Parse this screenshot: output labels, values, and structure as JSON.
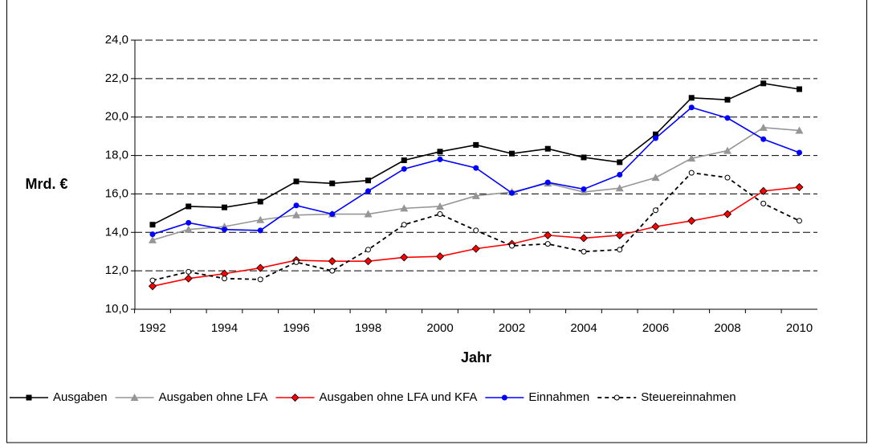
{
  "chart_data": {
    "type": "line",
    "categories": [
      "1992",
      null,
      "1994",
      null,
      "1996",
      null,
      "1998",
      null,
      "2000",
      null,
      "2002",
      null,
      "2004",
      null,
      "2006",
      null,
      "2008",
      null,
      "2010"
    ],
    "series": [
      {
        "name": "Ausgaben",
        "color": "#000000",
        "marker": "square",
        "dash": false,
        "values": [
          14.4,
          15.35,
          15.3,
          15.6,
          16.65,
          16.55,
          16.7,
          17.75,
          18.2,
          18.55,
          18.1,
          18.35,
          17.9,
          17.65,
          19.1,
          21.0,
          20.9,
          21.75,
          21.45
        ]
      },
      {
        "name": "Ausgaben ohne LFA",
        "color": "#969696",
        "marker": "triangle",
        "dash": false,
        "values": [
          13.6,
          14.15,
          14.3,
          14.65,
          14.9,
          14.95,
          14.95,
          15.25,
          15.35,
          15.9,
          16.1,
          16.55,
          16.1,
          16.3,
          16.85,
          17.85,
          18.25,
          19.45,
          19.3
        ]
      },
      {
        "name": "Ausgaben ohne LFA und KFA",
        "color": "#ff0000",
        "marker": "diamond",
        "dash": false,
        "values": [
          11.2,
          11.6,
          11.85,
          12.15,
          12.55,
          12.5,
          12.5,
          12.7,
          12.75,
          13.15,
          13.4,
          13.85,
          13.7,
          13.85,
          14.3,
          14.6,
          14.95,
          16.15,
          16.35
        ]
      },
      {
        "name": "Einnahmen",
        "color": "#0000ff",
        "marker": "circle",
        "dash": false,
        "values": [
          13.9,
          14.5,
          14.15,
          14.1,
          15.4,
          14.95,
          16.15,
          17.3,
          17.8,
          17.35,
          16.05,
          16.6,
          16.25,
          17.0,
          18.9,
          20.5,
          19.95,
          18.85,
          18.15
        ]
      },
      {
        "name": "Steuereinnahmen",
        "color": "#000000",
        "marker": "open-circle",
        "dash": true,
        "values": [
          11.5,
          11.95,
          11.6,
          11.55,
          12.45,
          12.0,
          13.1,
          14.4,
          14.95,
          14.1,
          13.3,
          13.4,
          13.0,
          13.1,
          15.15,
          17.1,
          16.85,
          15.5,
          14.6
        ]
      }
    ],
    "ylim": [
      10,
      24
    ],
    "yticks": [
      {
        "value": 10,
        "label": "10,0"
      },
      {
        "value": 12,
        "label": "12,0"
      },
      {
        "value": 14,
        "label": "14,0"
      },
      {
        "value": 16,
        "label": "16,0"
      },
      {
        "value": 18,
        "label": "18,0"
      },
      {
        "value": 20,
        "label": "20,0"
      },
      {
        "value": 22,
        "label": "22,0"
      },
      {
        "value": 24,
        "label": "24,0"
      }
    ],
    "y_label": "Mrd. €",
    "x_label": "Jahr",
    "grid": true,
    "legend": "bottom"
  }
}
